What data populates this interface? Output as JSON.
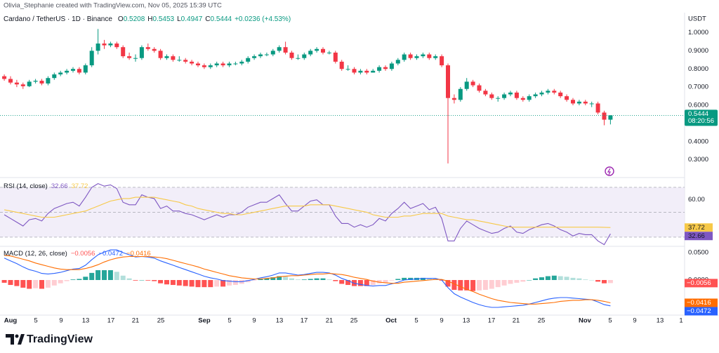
{
  "page": {
    "credit": "Olivia_Stephanie created with TradingView.com, Nov 05, 2025 15:39 UTC",
    "brand": "TradingView",
    "time_axis": [
      "Aug",
      "5",
      "9",
      "13",
      "17",
      "21",
      "25",
      "Sep",
      "5",
      "9",
      "13",
      "17",
      "21",
      "25",
      "Oct",
      "5",
      "9",
      "13",
      "17",
      "21",
      "25",
      "Nov",
      "5",
      "9",
      "13",
      "1"
    ]
  },
  "chart_data": [
    {
      "type": "candlestick",
      "title": "Cardano / TetherUS · 1D · Binance",
      "unit": "USDT",
      "ohlc_keys": [
        "O",
        "H",
        "L",
        "C"
      ],
      "change_label": "+0.0236 (+4.53%)",
      "countdown": "08:20:56",
      "up_color": "#089981",
      "down_color": "#f23645",
      "x": [
        "Jul 31",
        "Aug 1",
        "Aug 2",
        "Aug 3",
        "Aug 4",
        "Aug 5",
        "Aug 6",
        "Aug 7",
        "Aug 8",
        "Aug 9",
        "Aug 10",
        "Aug 11",
        "Aug 12",
        "Aug 13",
        "Aug 14",
        "Aug 15",
        "Aug 16",
        "Aug 17",
        "Aug 18",
        "Aug 19",
        "Aug 20",
        "Aug 21",
        "Aug 22",
        "Aug 23",
        "Aug 24",
        "Aug 25",
        "Aug 26",
        "Aug 27",
        "Aug 28",
        "Aug 29",
        "Aug 30",
        "Aug 31",
        "Sep 1",
        "Sep 2",
        "Sep 3",
        "Sep 4",
        "Sep 5",
        "Sep 6",
        "Sep 7",
        "Sep 8",
        "Sep 9",
        "Sep 10",
        "Sep 11",
        "Sep 12",
        "Sep 13",
        "Sep 14",
        "Sep 15",
        "Sep 16",
        "Sep 17",
        "Sep 18",
        "Sep 19",
        "Sep 20",
        "Sep 21",
        "Sep 22",
        "Sep 23",
        "Sep 24",
        "Sep 25",
        "Sep 26",
        "Sep 27",
        "Sep 28",
        "Sep 29",
        "Sep 30",
        "Oct 1",
        "Oct 2",
        "Oct 3",
        "Oct 4",
        "Oct 5",
        "Oct 6",
        "Oct 7",
        "Oct 8",
        "Oct 9",
        "Oct 10",
        "Oct 11",
        "Oct 12",
        "Oct 13",
        "Oct 14",
        "Oct 15",
        "Oct 16",
        "Oct 17",
        "Oct 18",
        "Oct 19",
        "Oct 20",
        "Oct 21",
        "Oct 22",
        "Oct 23",
        "Oct 24",
        "Oct 25",
        "Oct 26",
        "Oct 27",
        "Oct 28",
        "Oct 29",
        "Oct 30",
        "Oct 31",
        "Nov 1",
        "Nov 2",
        "Nov 3",
        "Nov 4",
        "Nov 5"
      ],
      "open": [
        0.76,
        0.745,
        0.725,
        0.715,
        0.705,
        0.73,
        0.735,
        0.72,
        0.75,
        0.77,
        0.78,
        0.79,
        0.8,
        0.78,
        0.82,
        0.9,
        0.94,
        0.93,
        0.94,
        0.92,
        0.87,
        0.86,
        0.86,
        0.92,
        0.91,
        0.9,
        0.86,
        0.87,
        0.85,
        0.85,
        0.84,
        0.83,
        0.82,
        0.81,
        0.82,
        0.83,
        0.82,
        0.83,
        0.83,
        0.84,
        0.86,
        0.87,
        0.88,
        0.88,
        0.9,
        0.92,
        0.89,
        0.86,
        0.86,
        0.88,
        0.9,
        0.91,
        0.89,
        0.89,
        0.84,
        0.8,
        0.8,
        0.78,
        0.79,
        0.78,
        0.79,
        0.81,
        0.8,
        0.83,
        0.85,
        0.88,
        0.86,
        0.87,
        0.88,
        0.86,
        0.87,
        0.82,
        0.64,
        0.63,
        0.69,
        0.73,
        0.71,
        0.68,
        0.66,
        0.64,
        0.64,
        0.66,
        0.67,
        0.64,
        0.63,
        0.65,
        0.66,
        0.67,
        0.68,
        0.67,
        0.65,
        0.63,
        0.61,
        0.62,
        0.61,
        0.61,
        0.56,
        0.5208
      ],
      "high": [
        0.77,
        0.76,
        0.74,
        0.725,
        0.74,
        0.745,
        0.745,
        0.76,
        0.78,
        0.79,
        0.8,
        0.81,
        0.81,
        0.83,
        0.92,
        1.02,
        0.96,
        0.95,
        0.95,
        0.93,
        0.89,
        0.88,
        0.93,
        0.94,
        0.92,
        0.91,
        0.88,
        0.88,
        0.87,
        0.86,
        0.85,
        0.84,
        0.83,
        0.83,
        0.84,
        0.84,
        0.84,
        0.84,
        0.85,
        0.87,
        0.88,
        0.89,
        0.89,
        0.91,
        0.93,
        0.95,
        0.9,
        0.88,
        0.89,
        0.91,
        0.92,
        0.92,
        0.9,
        0.9,
        0.85,
        0.82,
        0.81,
        0.8,
        0.8,
        0.8,
        0.82,
        0.82,
        0.84,
        0.86,
        0.89,
        0.89,
        0.88,
        0.89,
        0.89,
        0.88,
        0.88,
        0.83,
        0.66,
        0.7,
        0.75,
        0.74,
        0.72,
        0.69,
        0.67,
        0.65,
        0.67,
        0.68,
        0.68,
        0.65,
        0.66,
        0.67,
        0.68,
        0.69,
        0.69,
        0.68,
        0.66,
        0.64,
        0.63,
        0.63,
        0.62,
        0.62,
        0.57,
        0.5453
      ],
      "low": [
        0.735,
        0.715,
        0.7,
        0.69,
        0.7,
        0.72,
        0.71,
        0.71,
        0.74,
        0.76,
        0.77,
        0.78,
        0.77,
        0.77,
        0.81,
        0.88,
        0.91,
        0.92,
        0.91,
        0.86,
        0.85,
        0.84,
        0.85,
        0.9,
        0.89,
        0.85,
        0.85,
        0.84,
        0.84,
        0.83,
        0.82,
        0.81,
        0.8,
        0.8,
        0.81,
        0.81,
        0.81,
        0.82,
        0.82,
        0.83,
        0.85,
        0.86,
        0.87,
        0.87,
        0.89,
        0.88,
        0.85,
        0.85,
        0.85,
        0.87,
        0.89,
        0.88,
        0.88,
        0.83,
        0.79,
        0.79,
        0.77,
        0.77,
        0.77,
        0.78,
        0.78,
        0.79,
        0.79,
        0.82,
        0.84,
        0.85,
        0.85,
        0.86,
        0.85,
        0.85,
        0.81,
        0.28,
        0.61,
        0.62,
        0.68,
        0.7,
        0.67,
        0.65,
        0.63,
        0.62,
        0.63,
        0.65,
        0.63,
        0.62,
        0.62,
        0.64,
        0.65,
        0.66,
        0.66,
        0.64,
        0.62,
        0.6,
        0.6,
        0.6,
        0.59,
        0.55,
        0.49,
        0.4947
      ],
      "close": [
        0.745,
        0.725,
        0.715,
        0.705,
        0.73,
        0.735,
        0.72,
        0.75,
        0.77,
        0.78,
        0.79,
        0.8,
        0.78,
        0.82,
        0.9,
        0.94,
        0.93,
        0.94,
        0.92,
        0.87,
        0.86,
        0.86,
        0.92,
        0.91,
        0.9,
        0.86,
        0.87,
        0.85,
        0.85,
        0.84,
        0.83,
        0.82,
        0.81,
        0.82,
        0.83,
        0.82,
        0.83,
        0.83,
        0.84,
        0.86,
        0.87,
        0.88,
        0.88,
        0.9,
        0.92,
        0.89,
        0.86,
        0.86,
        0.88,
        0.9,
        0.91,
        0.89,
        0.89,
        0.84,
        0.8,
        0.8,
        0.78,
        0.79,
        0.78,
        0.79,
        0.81,
        0.8,
        0.83,
        0.85,
        0.88,
        0.86,
        0.87,
        0.88,
        0.86,
        0.87,
        0.82,
        0.64,
        0.63,
        0.69,
        0.73,
        0.71,
        0.68,
        0.66,
        0.64,
        0.64,
        0.66,
        0.67,
        0.64,
        0.63,
        0.65,
        0.66,
        0.67,
        0.68,
        0.67,
        0.65,
        0.63,
        0.61,
        0.62,
        0.61,
        0.61,
        0.56,
        0.5208,
        0.5444
      ],
      "ylim": [
        0.21,
        1.11
      ],
      "yticks": [
        {
          "value": 1.0,
          "label": "1.0000"
        },
        {
          "value": 0.9,
          "label": "0.9000"
        },
        {
          "value": 0.8,
          "label": "0.8000"
        },
        {
          "value": 0.7,
          "label": "0.7000"
        },
        {
          "value": 0.6,
          "label": "0.6000"
        },
        {
          "value": 0.4,
          "label": "0.4000"
        },
        {
          "value": 0.3,
          "label": "0.3000"
        }
      ]
    },
    {
      "type": "rsi",
      "title": "RSI (14, close)",
      "band_color": "#ede7f6",
      "levels": [
        70,
        50,
        30
      ],
      "series": [
        {
          "color": "#7e57c2",
          "values": [
            48,
            45,
            42,
            39,
            44,
            45,
            43,
            49,
            53,
            55,
            57,
            58,
            55,
            62,
            70,
            73,
            71,
            72,
            69,
            58,
            56,
            56,
            64,
            62,
            61,
            53,
            55,
            51,
            51,
            49,
            48,
            46,
            44,
            46,
            48,
            46,
            48,
            48,
            50,
            54,
            56,
            58,
            58,
            61,
            64,
            57,
            51,
            51,
            55,
            59,
            60,
            56,
            56,
            47,
            41,
            41,
            38,
            40,
            38,
            40,
            45,
            43,
            49,
            53,
            58,
            53,
            55,
            57,
            52,
            54,
            45,
            27,
            27,
            37,
            43,
            40,
            37,
            35,
            33,
            34,
            37,
            39,
            34,
            33,
            36,
            38,
            40,
            41,
            39,
            36,
            34,
            31,
            33,
            32,
            32,
            27,
            24,
            32.66
          ]
        },
        {
          "color": "#f7c948",
          "values": [
            52,
            51,
            50,
            49,
            48,
            47,
            46,
            46,
            46,
            47,
            48,
            49,
            50,
            51,
            53,
            55,
            57,
            59,
            60,
            61,
            61,
            62,
            62,
            62,
            62,
            61,
            60,
            59,
            58,
            56,
            55,
            53,
            52,
            51,
            50,
            49,
            49,
            48,
            48,
            49,
            50,
            51,
            52,
            53,
            54,
            55,
            55,
            55,
            55,
            56,
            56,
            56,
            56,
            55,
            54,
            53,
            52,
            51,
            50,
            48,
            47,
            46,
            46,
            46,
            47,
            47,
            48,
            49,
            49,
            49,
            49,
            47,
            46,
            45,
            44,
            44,
            43,
            42,
            41,
            40,
            39,
            38,
            38,
            38,
            38,
            38,
            38,
            38,
            38,
            38,
            38,
            38,
            38,
            38,
            38,
            38,
            37.9,
            37.72
          ]
        }
      ],
      "ylim": [
        23.2,
        77.3
      ],
      "yticks": [
        {
          "value": 60,
          "label": "60.00"
        }
      ]
    },
    {
      "type": "macd",
      "title": "MACD (12, 26, close)",
      "histogram": {
        "colors": [
          "#26a69a",
          "#b2dfdb",
          "#ff5252",
          "#ffcdd2"
        ],
        "last_label": "−0.0056",
        "values": [
          -0.005,
          -0.009,
          -0.011,
          -0.014,
          -0.016,
          -0.015,
          -0.016,
          -0.014,
          -0.01,
          -0.006,
          -0.002,
          0.001,
          0.002,
          0.006,
          0.013,
          0.018,
          0.018,
          0.018,
          0.015,
          0.008,
          0.003,
          -0.001,
          0,
          -0.001,
          -0.002,
          -0.006,
          -0.008,
          -0.009,
          -0.01,
          -0.011,
          -0.012,
          -0.013,
          -0.013,
          -0.013,
          -0.012,
          -0.012,
          -0.01,
          -0.009,
          -0.007,
          -0.004,
          -0.001,
          0.002,
          0.003,
          0.005,
          0.007,
          0.006,
          0.003,
          0.001,
          0.001,
          0.002,
          0.003,
          0.003,
          0.001,
          -0.002,
          -0.007,
          -0.009,
          -0.011,
          -0.011,
          -0.011,
          -0.009,
          -0.006,
          -0.005,
          -0.001,
          0.002,
          0.004,
          0.004,
          0.004,
          0.004,
          0.003,
          0.002,
          -0.001,
          -0.012,
          -0.018,
          -0.019,
          -0.019,
          -0.02,
          -0.019,
          -0.018,
          -0.016,
          -0.013,
          -0.01,
          -0.007,
          -0.005,
          -0.003,
          0,
          0.003,
          0.005,
          0.007,
          0.008,
          0.007,
          0.006,
          0.004,
          0.003,
          0.001,
          0,
          -0.003,
          -0.006,
          -0.0056
        ]
      },
      "series": [
        {
          "color": "#2962ff",
          "last_label": "−0.0472",
          "values": [
            0.04,
            0.035,
            0.03,
            0.024,
            0.019,
            0.016,
            0.012,
            0.011,
            0.012,
            0.014,
            0.017,
            0.02,
            0.021,
            0.027,
            0.037,
            0.046,
            0.051,
            0.055,
            0.055,
            0.05,
            0.046,
            0.042,
            0.043,
            0.042,
            0.04,
            0.035,
            0.031,
            0.027,
            0.023,
            0.019,
            0.015,
            0.011,
            0.007,
            0.004,
            0.002,
            -0.001,
            -0.002,
            -0.003,
            -0.003,
            -0.001,
            0.001,
            0.004,
            0.006,
            0.009,
            0.013,
            0.013,
            0.011,
            0.009,
            0.01,
            0.012,
            0.014,
            0.014,
            0.013,
            0.009,
            0.003,
            -0.001,
            -0.006,
            -0.008,
            -0.01,
            -0.011,
            -0.01,
            -0.01,
            -0.007,
            -0.004,
            0.0,
            0.001,
            0.002,
            0.003,
            0.003,
            0.003,
            0.0,
            -0.014,
            -0.025,
            -0.031,
            -0.036,
            -0.041,
            -0.045,
            -0.048,
            -0.05,
            -0.05,
            -0.049,
            -0.048,
            -0.047,
            -0.046,
            -0.044,
            -0.041,
            -0.038,
            -0.035,
            -0.033,
            -0.032,
            -0.032,
            -0.033,
            -0.034,
            -0.035,
            -0.036,
            -0.04,
            -0.045,
            -0.0472
          ]
        },
        {
          "color": "#ff6d00",
          "last_label": "−0.0416",
          "values": [
            0.045,
            0.044,
            0.041,
            0.038,
            0.035,
            0.031,
            0.028,
            0.025,
            0.022,
            0.02,
            0.019,
            0.019,
            0.019,
            0.021,
            0.024,
            0.028,
            0.033,
            0.037,
            0.04,
            0.042,
            0.043,
            0.043,
            0.043,
            0.043,
            0.042,
            0.041,
            0.039,
            0.036,
            0.033,
            0.03,
            0.027,
            0.024,
            0.02,
            0.017,
            0.014,
            0.011,
            0.008,
            0.006,
            0.004,
            0.003,
            0.002,
            0.002,
            0.003,
            0.004,
            0.006,
            0.007,
            0.008,
            0.008,
            0.009,
            0.01,
            0.011,
            0.011,
            0.012,
            0.011,
            0.01,
            0.008,
            0.005,
            0.003,
            0.001,
            -0.002,
            -0.004,
            -0.005,
            -0.006,
            -0.006,
            -0.004,
            -0.003,
            -0.002,
            -0.001,
            0.0,
            0.001,
            0.001,
            -0.002,
            -0.007,
            -0.012,
            -0.017,
            -0.021,
            -0.026,
            -0.03,
            -0.034,
            -0.037,
            -0.039,
            -0.041,
            -0.042,
            -0.043,
            -0.044,
            -0.044,
            -0.043,
            -0.042,
            -0.041,
            -0.039,
            -0.038,
            -0.037,
            -0.037,
            -0.036,
            -0.036,
            -0.037,
            -0.039,
            -0.0416
          ]
        }
      ],
      "ylim": [
        -0.0628,
        0.0577
      ],
      "yticks": [
        {
          "value": 0.05,
          "label": "0.0500"
        },
        {
          "value": 0,
          "label": "0.0000"
        }
      ]
    }
  ]
}
